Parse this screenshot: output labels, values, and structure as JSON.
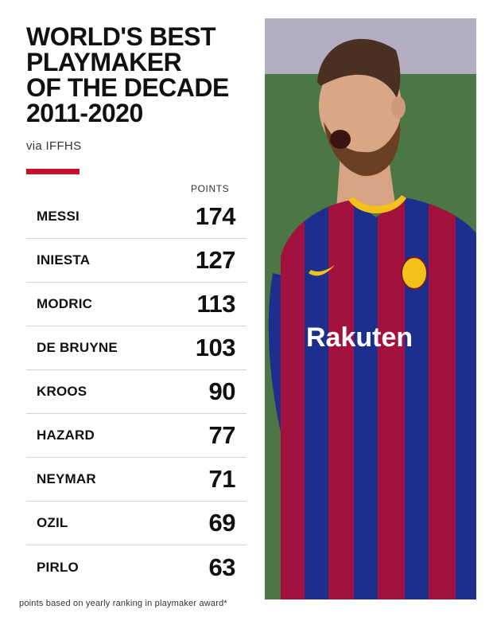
{
  "title_lines": [
    "WORLD'S BEST",
    "PLAYMAKER",
    "OF THE DECADE",
    "2011-2020"
  ],
  "source": "via IFFHS",
  "column_header": "POINTS",
  "rankings": [
    {
      "name": "MESSI",
      "points": "174"
    },
    {
      "name": "INIESTA",
      "points": "127"
    },
    {
      "name": "MODRIC",
      "points": "113"
    },
    {
      "name": "DE BRUYNE",
      "points": "103"
    },
    {
      "name": "KROOS",
      "points": "90"
    },
    {
      "name": "HAZARD",
      "points": "77"
    },
    {
      "name": "NEYMAR",
      "points": "71"
    },
    {
      "name": "OZIL",
      "points": "69"
    },
    {
      "name": "PIRLO",
      "points": "63"
    }
  ],
  "footnote": "points based on yearly ranking in playmaker award*",
  "photo": {
    "description_icon": "player-celebrating-photo",
    "shirt_sponsor": "Rakuten"
  },
  "colors": {
    "accent": "#c8102e",
    "text": "#111111",
    "divider": "#d4d4d4",
    "shirt_blue": "#1d2f8c",
    "shirt_red": "#a3123f",
    "collar_yellow": "#f2c21b"
  }
}
